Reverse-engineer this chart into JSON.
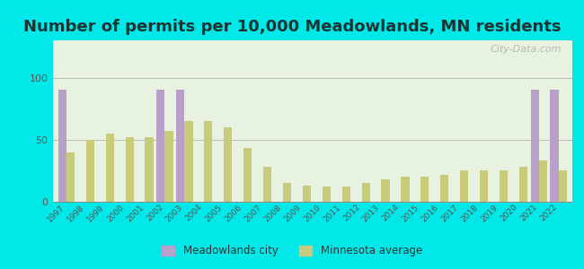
{
  "title": "Number of permits per 10,000 Meadowlands, MN residents",
  "years": [
    1997,
    1998,
    1999,
    2000,
    2001,
    2002,
    2003,
    2004,
    2005,
    2006,
    2007,
    2008,
    2009,
    2010,
    2011,
    2012,
    2013,
    2014,
    2015,
    2016,
    2017,
    2018,
    2019,
    2020,
    2021,
    2022
  ],
  "meadowlands": [
    90,
    0,
    0,
    0,
    0,
    90,
    90,
    0,
    0,
    0,
    0,
    0,
    0,
    0,
    0,
    0,
    0,
    0,
    0,
    0,
    0,
    0,
    0,
    0,
    90,
    90
  ],
  "mn_average": [
    40,
    50,
    55,
    52,
    52,
    57,
    65,
    65,
    60,
    43,
    28,
    15,
    13,
    12,
    12,
    15,
    18,
    20,
    20,
    22,
    25,
    25,
    25,
    28,
    33,
    25
  ],
  "meadowlands_color": "#b8a0c8",
  "mn_average_color": "#c8cc7a",
  "background_outer": "#00e8e8",
  "background_inner": "#e8f2e0",
  "ylim": [
    0,
    130
  ],
  "yticks": [
    0,
    50,
    100
  ],
  "title_fontsize": 13,
  "bar_width": 0.42,
  "legend_meadowlands": "Meadowlands city",
  "legend_mn": "Minnesota average",
  "watermark": "City-Data.com"
}
